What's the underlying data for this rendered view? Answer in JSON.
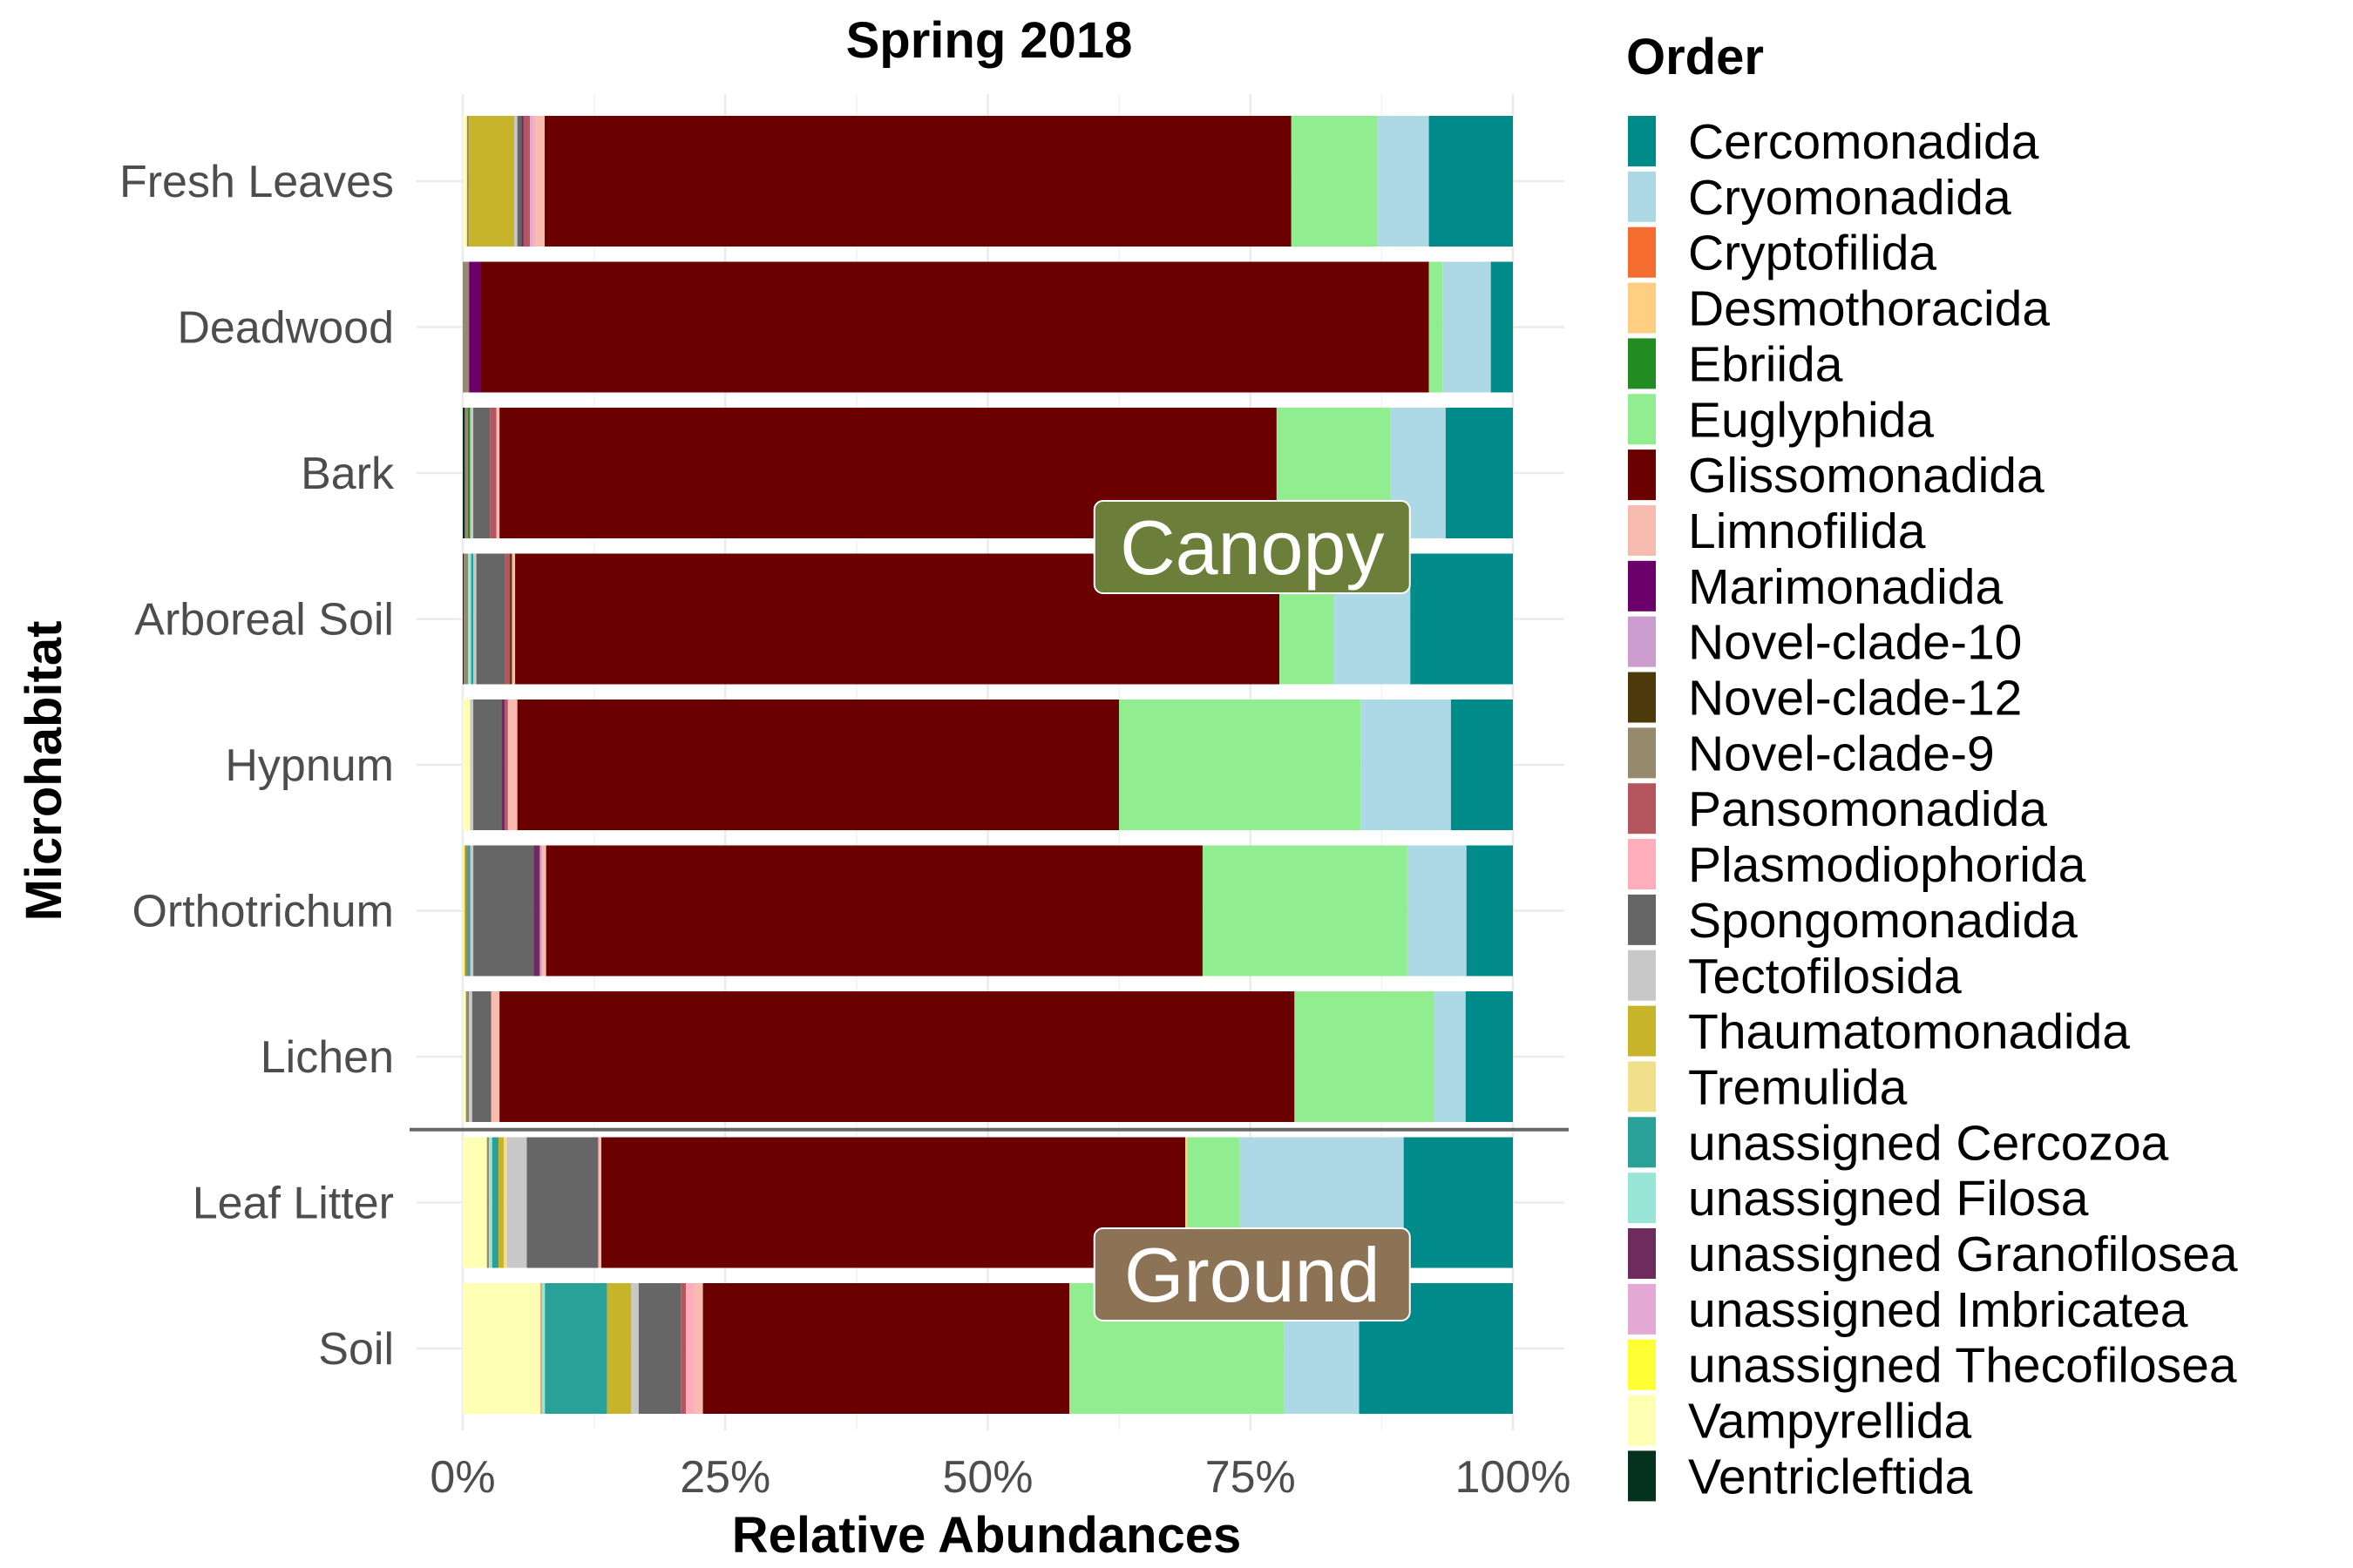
{
  "chart_data": {
    "type": "bar",
    "orientation": "horizontal",
    "stacked": true,
    "title": "Spring 2018",
    "xlabel": "Relative Abundances",
    "ylabel": "Microhabitat",
    "xlim": [
      0,
      100
    ],
    "x_ticks": [
      "0%",
      "25%",
      "50%",
      "75%",
      "100%"
    ],
    "x_tick_values": [
      0,
      25,
      50,
      75,
      100
    ],
    "grid": true,
    "legend": {
      "title": "Order",
      "position": "right"
    },
    "categories": [
      "Fresh Leaves",
      "Deadwood",
      "Bark",
      "Arboreal Soil",
      "Hypnum",
      "Orthotrichum",
      "Lichen",
      "Leaf Litter",
      "Soil"
    ],
    "series": [
      {
        "name": "Vampyrellida",
        "color": "#ffffb3",
        "values": [
          0.4,
          0,
          0,
          0,
          0.7,
          0,
          0.3,
          2.3,
          7.4
        ]
      },
      {
        "name": "unassigned Thecofilosea",
        "color": "#ffff33",
        "values": [
          0,
          0,
          0,
          0,
          0,
          0.2,
          0,
          0,
          0
        ]
      },
      {
        "name": "Ventricleftida",
        "color": "#05321e",
        "values": [
          0,
          0,
          0.2,
          0.1,
          0,
          0,
          0,
          0,
          0
        ]
      },
      {
        "name": "Novel-clade-9",
        "color": "#958a6b",
        "values": [
          0.2,
          0.6,
          0.3,
          0.4,
          0,
          0.3,
          0.3,
          0.2,
          0
        ]
      },
      {
        "name": "Cryptofilida",
        "color": "#f46d2e",
        "values": [
          0,
          0,
          0,
          0,
          0,
          0,
          0,
          0,
          0.1
        ]
      },
      {
        "name": "Ebriida",
        "color": "#228b22",
        "values": [
          0,
          0,
          0.2,
          0,
          0,
          0,
          0,
          0,
          0
        ]
      },
      {
        "name": "unassigned Filosa",
        "color": "#99e6d8",
        "values": [
          0,
          0,
          0,
          0.3,
          0,
          0,
          0,
          0.3,
          0.3
        ]
      },
      {
        "name": "unassigned Cercozoa",
        "color": "#2aa198",
        "values": [
          0,
          0,
          0,
          0.2,
          0,
          0.2,
          0,
          0.6,
          5.9
        ]
      },
      {
        "name": "Thaumatomonadida",
        "color": "#c8b42a",
        "values": [
          4.3,
          0,
          0,
          0,
          0,
          0,
          0,
          0.5,
          2.3
        ]
      },
      {
        "name": "Tremulida",
        "color": "#f0e08c",
        "values": [
          0,
          0,
          0,
          0,
          0,
          0,
          0,
          0.3,
          0
        ]
      },
      {
        "name": "Tectofilosida",
        "color": "#c8c8c8",
        "values": [
          0.3,
          0,
          0.3,
          0.3,
          0.3,
          0.3,
          0.3,
          1.9,
          0.7
        ]
      },
      {
        "name": "Marimonadida",
        "color": "#6b006b",
        "values": [
          0,
          1.1,
          0,
          0,
          0,
          0,
          0,
          0,
          0
        ]
      },
      {
        "name": "Spongomonadida",
        "color": "#666666",
        "values": [
          0.4,
          0,
          1.6,
          2.7,
          2.7,
          5.7,
          1.8,
          6.8,
          4.0
        ]
      },
      {
        "name": "unassigned Granofilosea",
        "color": "#6e2c5e",
        "values": [
          0.2,
          0,
          0,
          0,
          0.3,
          0.6,
          0,
          0,
          0
        ]
      },
      {
        "name": "Pansomonadida",
        "color": "#b5555e",
        "values": [
          0.6,
          0,
          0.6,
          0.5,
          0.3,
          0,
          0,
          0,
          0.5
        ]
      },
      {
        "name": "Novel-clade-10",
        "color": "#cc9ccf",
        "values": [
          0,
          0,
          0,
          0,
          0,
          0.2,
          0,
          0,
          0
        ]
      },
      {
        "name": "unassigned Imbricatea",
        "color": "#e3a8d4",
        "values": [
          0.3,
          0,
          0,
          0,
          0,
          0,
          0,
          0,
          0
        ]
      },
      {
        "name": "Novel-clade-12",
        "color": "#4d3a0a",
        "values": [
          0,
          0,
          0,
          0.2,
          0,
          0,
          0,
          0,
          0
        ]
      },
      {
        "name": "Plasmodiophorida",
        "color": "#ffadbb",
        "values": [
          0.2,
          0,
          0,
          0,
          0,
          0,
          0,
          0,
          0.8
        ]
      },
      {
        "name": "Limnofilida",
        "color": "#f8bbb0",
        "values": [
          0.9,
          0,
          0.3,
          0.3,
          0.9,
          0.4,
          0.8,
          0.3,
          0.8
        ]
      },
      {
        "name": "Glissomonadida",
        "color": "#6b0000",
        "values": [
          71.1,
          90.3,
          74.0,
          73.0,
          57.3,
          62.2,
          75.7,
          55.6,
          34.8
        ]
      },
      {
        "name": "Desmothoracida",
        "color": "#ffcf81",
        "values": [
          0,
          0,
          0,
          0,
          0,
          0,
          0,
          0.2,
          0
        ]
      },
      {
        "name": "Euglyphida",
        "color": "#90ee90",
        "values": [
          8.2,
          1.3,
          10.8,
          5.2,
          23.0,
          19.4,
          13.3,
          5.0,
          20.4
        ]
      },
      {
        "name": "Cryomonadida",
        "color": "#add8e6",
        "values": [
          4.9,
          4.6,
          5.3,
          7.3,
          8.6,
          5.6,
          3.0,
          15.6,
          7.1
        ]
      },
      {
        "name": "Cercomonadida",
        "color": "#008b8b",
        "values": [
          8.0,
          2.1,
          6.4,
          9.8,
          5.9,
          4.4,
          4.5,
          10.4,
          14.6
        ]
      }
    ],
    "legend_entries": [
      "Cercomonadida",
      "Cryomonadida",
      "Cryptofilida",
      "Desmothoracida",
      "Ebriida",
      "Euglyphida",
      "Glissomonadida",
      "Limnofilida",
      "Marimonadida",
      "Novel-clade-10",
      "Novel-clade-12",
      "Novel-clade-9",
      "Pansomonadida",
      "Plasmodiophorida",
      "Spongomonadida",
      "Tectofilosida",
      "Thaumatomonadida",
      "Tremulida",
      "unassigned Cercozoa",
      "unassigned Filosa",
      "unassigned Granofilosea",
      "unassigned Imbricatea",
      "unassigned Thecofilosea",
      "Vampyrellida",
      "Ventricleftida"
    ],
    "annotations": [
      {
        "text": "Canopy",
        "fill": "#6b7f3a",
        "anchor_x": 75,
        "anchor_category": "Bark"
      },
      {
        "text": "Ground",
        "fill": "#8c7356",
        "anchor_x": 75,
        "anchor_category": "Leaf Litter"
      }
    ],
    "separator_after_category": "Lichen",
    "separator_color": "#666666"
  }
}
